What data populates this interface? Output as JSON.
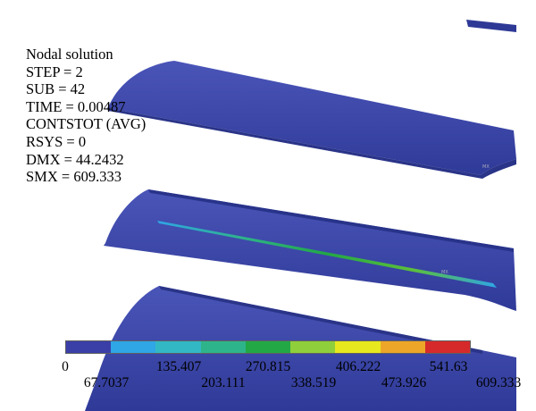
{
  "info": {
    "title": "Nodal solution",
    "step": "STEP = 2",
    "sub": "SUB = 42",
    "time": "TIME = 0.00487",
    "result": "CONTSTOT (AVG)",
    "rsys": "RSYS = 0",
    "dmx": "DMX = 44.2432",
    "smx": "SMX = 609.333"
  },
  "legend": {
    "colors": [
      "#3a3fa8",
      "#2fa6e6",
      "#32b8c4",
      "#2eb48a",
      "#22a845",
      "#8fcf3c",
      "#e8e81e",
      "#eda628",
      "#d62a2a"
    ],
    "upper_labels": [
      "0",
      "135.407",
      "270.815",
      "406.222",
      "541.63"
    ],
    "lower_labels": [
      "67.7037",
      "203.111",
      "338.519",
      "473.926",
      "609.333"
    ]
  },
  "model": {
    "surface_color": "#3a45a6",
    "highlight_color": "#1fa84a"
  }
}
